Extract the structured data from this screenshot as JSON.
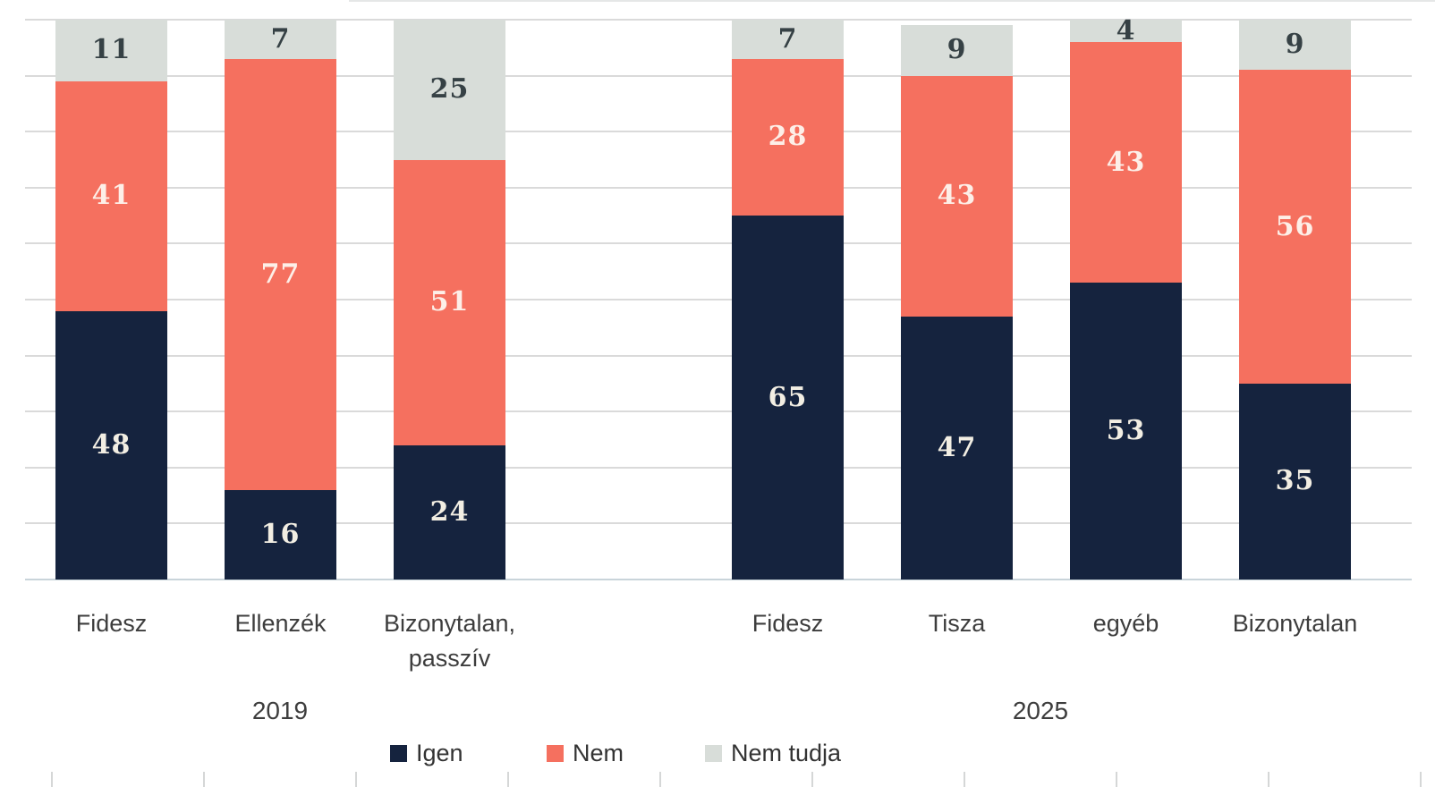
{
  "chart_data": {
    "type": "bar",
    "stacked": true,
    "title": "",
    "xlabel": "",
    "ylabel": "",
    "ylim": [
      0,
      100
    ],
    "gridline_step": 10,
    "grid": true,
    "legend_position": "bottom",
    "series_names": [
      "Igen",
      "Nem",
      "Nem tudja"
    ],
    "colors": {
      "Igen": "#15233e",
      "Nem": "#f5705f",
      "Nem tudja": "#d8ddd9"
    },
    "value_label_colors": {
      "Igen": "#f2eee3",
      "Nem": "#fdefe8",
      "Nem tudja": "#364145"
    },
    "groups": [
      {
        "label": "2019",
        "bars": [
          {
            "category": [
              "Fidesz"
            ],
            "values": [
              48,
              41,
              11
            ]
          },
          {
            "category": [
              "Ellenzék"
            ],
            "values": [
              16,
              77,
              7
            ]
          },
          {
            "category": [
              "Bizonytalan,",
              "passzív"
            ],
            "values": [
              24,
              51,
              25
            ]
          }
        ]
      },
      {
        "label": "2025",
        "bars": [
          {
            "category": [
              "Fidesz"
            ],
            "values": [
              65,
              28,
              7
            ]
          },
          {
            "category": [
              "Tisza"
            ],
            "values": [
              47,
              43,
              9
            ]
          },
          {
            "category": [
              "egyéb"
            ],
            "values": [
              53,
              43,
              4
            ]
          },
          {
            "category": [
              "Bizonytalan"
            ],
            "values": [
              35,
              56,
              9
            ]
          }
        ]
      }
    ],
    "legend": [
      {
        "label": "Igen"
      },
      {
        "label": "Nem"
      },
      {
        "label": "Nem tudja"
      }
    ]
  }
}
